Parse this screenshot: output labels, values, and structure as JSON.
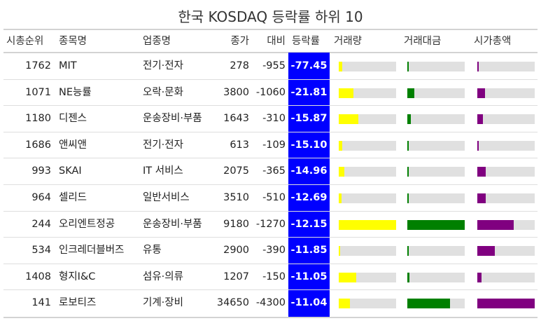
{
  "chart_data": {
    "type": "table",
    "title": "한국 KOSDAQ 등락률 하위 10",
    "columns": [
      "시총순위",
      "종목명",
      "업종명",
      "종가",
      "대비",
      "등락률",
      "거래량",
      "거래대금",
      "시가총액"
    ],
    "bar_colors": {
      "volume": "#ffff00",
      "trade_value": "#008000",
      "market_cap": "#800080"
    },
    "rate_bg_color": "#0000ff",
    "rows": [
      {
        "rank": "1762",
        "name": "MIT",
        "sector": "전기·전자",
        "close": "278",
        "change": "-955",
        "rate": "-77.45",
        "volume": 0.06,
        "trade_value": 0.01,
        "market_cap": 0.02
      },
      {
        "rank": "1071",
        "name": "NE능률",
        "sector": "오락·문화",
        "close": "3800",
        "change": "-1060",
        "rate": "-21.81",
        "volume": 0.26,
        "trade_value": 0.12,
        "market_cap": 0.13
      },
      {
        "rank": "1180",
        "name": "디젠스",
        "sector": "운송장비·부품",
        "close": "1643",
        "change": "-310",
        "rate": "-15.87",
        "volume": 0.34,
        "trade_value": 0.06,
        "market_cap": 0.1
      },
      {
        "rank": "1686",
        "name": "앤씨앤",
        "sector": "전기·전자",
        "close": "613",
        "change": "-109",
        "rate": "-15.10",
        "volume": 0.06,
        "trade_value": 0.01,
        "market_cap": 0.03
      },
      {
        "rank": "993",
        "name": "SKAI",
        "sector": "IT 서비스",
        "close": "2075",
        "change": "-365",
        "rate": "-14.96",
        "volume": 0.1,
        "trade_value": 0.02,
        "market_cap": 0.15
      },
      {
        "rank": "964",
        "name": "셀리드",
        "sector": "일반서비스",
        "close": "3510",
        "change": "-510",
        "rate": "-12.69",
        "volume": 0.05,
        "trade_value": 0.01,
        "market_cap": 0.15
      },
      {
        "rank": "244",
        "name": "오리엔트정공",
        "sector": "운송장비·부품",
        "close": "9180",
        "change": "-1270",
        "rate": "-12.15",
        "volume": 1.0,
        "trade_value": 1.0,
        "market_cap": 0.63
      },
      {
        "rank": "534",
        "name": "인크레더블버즈",
        "sector": "유통",
        "close": "2900",
        "change": "-390",
        "rate": "-11.85",
        "volume": 0.03,
        "trade_value": 0.01,
        "market_cap": 0.31
      },
      {
        "rank": "1408",
        "name": "형지I&C",
        "sector": "섬유·의류",
        "close": "1207",
        "change": "-150",
        "rate": "-11.05",
        "volume": 0.3,
        "trade_value": 0.04,
        "market_cap": 0.07
      },
      {
        "rank": "141",
        "name": "로보티즈",
        "sector": "기계·장비",
        "close": "34650",
        "change": "-4300",
        "rate": "-11.04",
        "volume": 0.2,
        "trade_value": 0.74,
        "market_cap": 1.0
      }
    ]
  }
}
